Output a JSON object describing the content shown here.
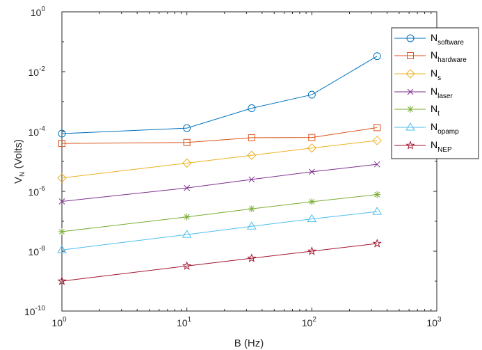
{
  "chart_data": {
    "type": "line",
    "title": "",
    "xlabel": "B (Hz)",
    "ylabel_main": "V",
    "ylabel_sub": "N",
    "ylabel_rest": " (Volts)",
    "xscale": "log",
    "yscale": "log",
    "xlim": [
      1,
      1000
    ],
    "ylim": [
      1e-10,
      1
    ],
    "grid": false,
    "legend_position": "top-right",
    "x_ticks": [
      {
        "base": "10",
        "exp": "0"
      },
      {
        "base": "10",
        "exp": "1"
      },
      {
        "base": "10",
        "exp": "2"
      },
      {
        "base": "10",
        "exp": "3"
      }
    ],
    "y_ticks": [
      {
        "base": "10",
        "exp": "-10"
      },
      {
        "base": "10",
        "exp": "-8"
      },
      {
        "base": "10",
        "exp": "-6"
      },
      {
        "base": "10",
        "exp": "-4"
      },
      {
        "base": "10",
        "exp": "-2"
      },
      {
        "base": "10",
        "exp": "0"
      }
    ],
    "x": [
      1,
      10,
      33,
      100,
      333
    ],
    "series": [
      {
        "label_main": "N",
        "label_sub": "software",
        "color": "#0072BD",
        "marker": "circle",
        "values": [
          8.5e-05,
          0.00013,
          0.0006,
          0.0017,
          0.033
        ]
      },
      {
        "label_main": "N",
        "label_sub": "hardware",
        "color": "#D95319",
        "marker": "square",
        "values": [
          4e-05,
          4.3e-05,
          6.2e-05,
          6.3e-05,
          0.000135
        ]
      },
      {
        "label_main": "N",
        "label_sub": "s",
        "color": "#EDB120",
        "marker": "diamond",
        "values": [
          2.8e-06,
          8.8e-06,
          1.6e-05,
          2.8e-05,
          5e-05
        ]
      },
      {
        "label_main": "N",
        "label_sub": "laser",
        "color": "#7E2F8E",
        "marker": "x",
        "values": [
          4.6e-07,
          1.3e-06,
          2.5e-06,
          4.5e-06,
          8e-06
        ]
      },
      {
        "label_main": "N",
        "label_sub": "t",
        "color": "#77AC30",
        "marker": "asterisk",
        "values": [
          4.5e-08,
          1.4e-07,
          2.6e-07,
          4.5e-07,
          7.8e-07
        ]
      },
      {
        "label_main": "N",
        "label_sub": "opamp",
        "color": "#4DBEEE",
        "marker": "triangle",
        "values": [
          1.1e-08,
          3.6e-08,
          6.8e-08,
          1.2e-07,
          2.1e-07
        ]
      },
      {
        "label_main": "N",
        "label_sub": "NEP",
        "color": "#A2142F",
        "marker": "star",
        "values": [
          1e-09,
          3.2e-09,
          5.8e-09,
          1e-08,
          1.8e-08
        ]
      }
    ]
  }
}
